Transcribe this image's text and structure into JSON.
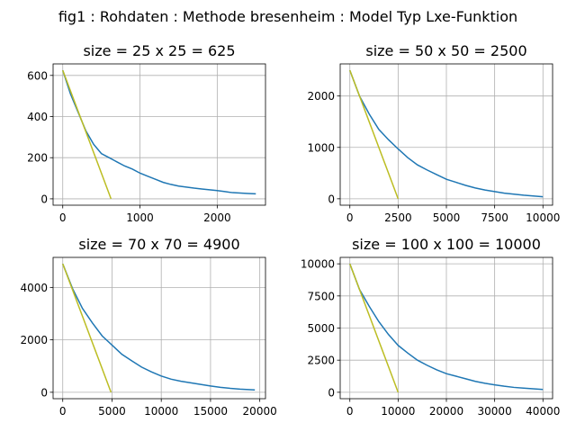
{
  "figure": {
    "suptitle": "fig1 : Rohdaten : Methode bresenheim : Model Typ Lxe-Funktion"
  },
  "colors": {
    "series_measured": "#1f77b4",
    "series_linear": "#bcbd22",
    "grid": "#b0b0b0"
  },
  "chart_data": [
    {
      "type": "line",
      "title": "size = 25 x 25 = 625",
      "xlabel": "",
      "ylabel": "",
      "xlim": [
        -125,
        2625
      ],
      "ylim": [
        -31,
        656
      ],
      "xticks": [
        0,
        1000,
        2000
      ],
      "xtick_labels": [
        "0",
        "1000",
        "2000"
      ],
      "yticks": [
        0,
        200,
        400,
        600
      ],
      "ytick_labels": [
        "0",
        "200",
        "400",
        "600"
      ],
      "grid": true,
      "series": [
        {
          "color": "#1f77b4",
          "x": [
            0,
            100,
            200,
            300,
            400,
            500,
            600,
            700,
            800,
            900,
            1000,
            1100,
            1200,
            1300,
            1400,
            1500,
            1600,
            1700,
            1800,
            1900,
            2000,
            2100,
            2200,
            2300,
            2400,
            2500
          ],
          "y": [
            625,
            510,
            420,
            330,
            265,
            220,
            200,
            180,
            160,
            145,
            125,
            110,
            95,
            80,
            70,
            62,
            57,
            52,
            48,
            44,
            40,
            35,
            30,
            28,
            26,
            24
          ]
        },
        {
          "color": "#bcbd22",
          "x": [
            0,
            625
          ],
          "y": [
            625,
            0
          ]
        }
      ]
    },
    {
      "type": "line",
      "title": "size = 50 x 50 = 2500",
      "xlabel": "",
      "ylabel": "",
      "xlim": [
        -500,
        10500
      ],
      "ylim": [
        -125,
        2625
      ],
      "xticks": [
        0,
        2500,
        5000,
        7500,
        10000
      ],
      "xtick_labels": [
        "0",
        "2500",
        "5000",
        "7500",
        "10000"
      ],
      "yticks": [
        0,
        1000,
        2000
      ],
      "ytick_labels": [
        "0",
        "1000",
        "2000"
      ],
      "grid": true,
      "series": [
        {
          "color": "#1f77b4",
          "x": [
            0,
            500,
            1000,
            1500,
            2000,
            2500,
            3000,
            3500,
            4000,
            4500,
            5000,
            5500,
            6000,
            6500,
            7000,
            7500,
            8000,
            8500,
            9000,
            9500,
            10000
          ],
          "y": [
            2500,
            2000,
            1650,
            1350,
            1150,
            970,
            800,
            660,
            560,
            470,
            380,
            320,
            260,
            210,
            170,
            140,
            110,
            90,
            70,
            55,
            40
          ]
        },
        {
          "color": "#bcbd22",
          "x": [
            0,
            2500
          ],
          "y": [
            2500,
            0
          ]
        }
      ]
    },
    {
      "type": "line",
      "title": "size = 70 x 70 = 4900",
      "xlabel": "",
      "ylabel": "",
      "xlim": [
        -980,
        20580
      ],
      "ylim": [
        -245,
        5145
      ],
      "xticks": [
        0,
        5000,
        10000,
        15000,
        20000
      ],
      "xtick_labels": [
        "0",
        "5000",
        "10000",
        "15000",
        "20000"
      ],
      "yticks": [
        0,
        2000,
        4000
      ],
      "ytick_labels": [
        "0",
        "2000",
        "4000"
      ],
      "grid": true,
      "series": [
        {
          "color": "#1f77b4",
          "x": [
            0,
            1000,
            2000,
            3000,
            4000,
            5000,
            6000,
            7000,
            8000,
            9000,
            10000,
            11000,
            12000,
            13000,
            14000,
            15000,
            16000,
            17000,
            18000,
            19500
          ],
          "y": [
            4900,
            3950,
            3200,
            2650,
            2150,
            1800,
            1450,
            1200,
            960,
            780,
            620,
            500,
            420,
            360,
            300,
            240,
            190,
            150,
            120,
            90
          ]
        },
        {
          "color": "#bcbd22",
          "x": [
            0,
            4900
          ],
          "y": [
            4900,
            0
          ]
        }
      ]
    },
    {
      "type": "line",
      "title": "size = 100 x 100 = 10000",
      "xlabel": "",
      "ylabel": "",
      "xlim": [
        -2000,
        42000
      ],
      "ylim": [
        -500,
        10500
      ],
      "xticks": [
        0,
        10000,
        20000,
        30000,
        40000
      ],
      "xtick_labels": [
        "0",
        "10000",
        "20000",
        "30000",
        "40000"
      ],
      "yticks": [
        0,
        2500,
        5000,
        7500,
        10000
      ],
      "ytick_labels": [
        "0",
        "2500",
        "5000",
        "7500",
        "10000"
      ],
      "grid": true,
      "series": [
        {
          "color": "#1f77b4",
          "x": [
            0,
            2000,
            4000,
            6000,
            8000,
            10000,
            12000,
            14000,
            16000,
            18000,
            20000,
            22000,
            24000,
            26000,
            28000,
            30000,
            32000,
            34000,
            36000,
            38000,
            40000
          ],
          "y": [
            10000,
            8000,
            6700,
            5500,
            4500,
            3650,
            3050,
            2500,
            2100,
            1750,
            1450,
            1250,
            1050,
            850,
            700,
            580,
            470,
            380,
            320,
            270,
            220
          ]
        },
        {
          "color": "#bcbd22",
          "x": [
            0,
            10000
          ],
          "y": [
            10000,
            0
          ]
        }
      ]
    }
  ]
}
